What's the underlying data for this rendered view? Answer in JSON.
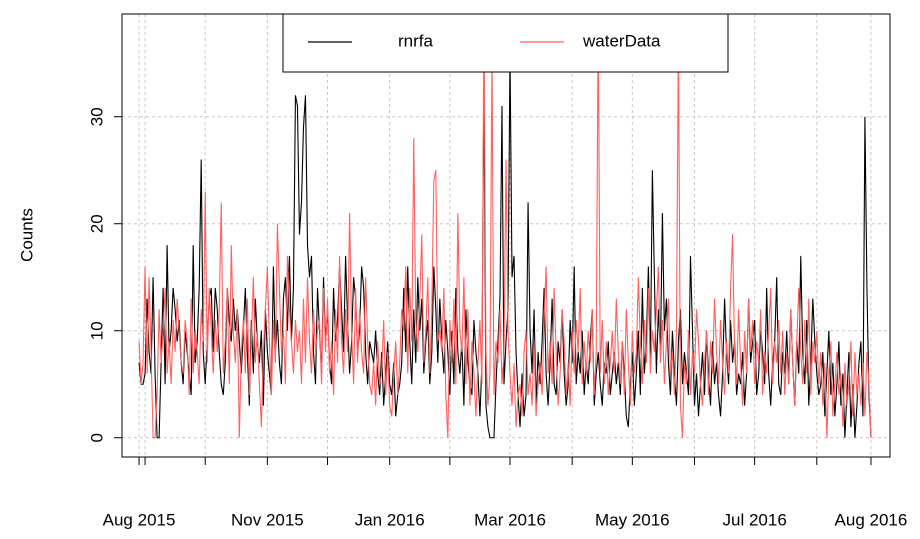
{
  "chart_data": {
    "type": "line",
    "ylabel": "Counts",
    "xlim": [
      -8.5,
      374.5
    ],
    "xticks": [
      {
        "value": 0,
        "label": "Aug 2015"
      },
      {
        "value": 64,
        "label": "Nov 2015"
      },
      {
        "value": 125,
        "label": "Jan 2016"
      },
      {
        "value": 185,
        "label": "Mar 2016"
      },
      {
        "value": 246,
        "label": "May 2016"
      },
      {
        "value": 307,
        "label": "Jul 2016"
      },
      {
        "value": 365,
        "label": "Aug 2016"
      }
    ],
    "xminorticks": [
      3,
      33,
      94,
      155,
      216,
      277,
      338
    ],
    "ylim": [
      -1.8,
      39.6
    ],
    "yticks": [
      0,
      10,
      20,
      30
    ],
    "grid": true,
    "legend": "top",
    "series": [
      {
        "name": "rnrfa",
        "color": "#000000",
        "values": [
          7,
          5,
          5,
          6,
          13,
          8,
          6,
          15,
          6,
          0,
          0,
          7,
          14,
          5,
          18,
          8,
          10,
          14,
          12,
          9,
          11,
          7,
          5,
          10,
          8,
          6,
          4,
          18,
          7,
          9,
          14,
          26,
          8,
          5,
          9,
          13,
          14,
          8,
          14,
          12,
          8,
          5,
          4,
          7,
          14,
          11,
          9,
          13,
          10,
          12,
          9,
          6,
          10,
          14,
          8,
          3,
          11,
          6,
          13,
          9,
          7,
          10,
          3,
          12,
          8,
          6,
          4,
          16,
          8,
          11,
          7,
          5,
          13,
          15,
          10,
          17,
          9,
          14,
          32,
          31,
          19,
          22,
          29,
          32,
          18,
          15,
          17,
          8,
          5,
          14,
          10,
          6,
          15,
          9,
          12,
          7,
          5,
          14,
          9,
          11,
          16,
          12,
          8,
          17,
          11,
          6,
          9,
          15,
          13,
          8,
          10,
          16,
          14,
          8,
          5,
          9,
          8,
          7,
          10,
          6,
          4,
          8,
          3,
          6,
          9,
          5,
          4,
          7,
          2,
          4,
          5,
          7,
          14,
          8,
          16,
          9,
          5,
          12,
          7,
          15,
          10,
          13,
          6,
          9,
          11,
          5,
          8,
          16,
          12,
          7,
          13,
          9,
          6,
          11,
          8,
          4,
          10,
          5,
          14,
          8,
          6,
          9,
          3,
          12,
          7,
          5,
          4,
          11,
          8,
          6,
          2,
          7,
          34,
          3,
          1,
          0,
          0,
          0,
          5,
          9,
          13,
          31,
          5,
          9,
          12,
          36,
          15,
          17,
          8,
          4,
          1,
          6,
          2,
          4,
          22,
          10,
          6,
          12,
          3,
          8,
          5,
          9,
          14,
          6,
          3,
          7,
          13,
          5,
          4,
          9,
          7,
          12,
          6,
          3,
          5,
          11,
          7,
          16,
          5,
          8,
          6,
          10,
          4,
          7,
          5,
          9,
          12,
          3,
          6,
          8,
          5,
          3,
          7,
          6,
          9,
          4,
          6,
          8,
          5,
          7,
          4,
          9,
          6,
          2,
          1,
          5,
          8,
          3,
          6,
          10,
          4,
          14,
          6,
          9,
          16,
          7,
          25,
          15,
          6,
          12,
          8,
          21,
          10,
          13,
          7,
          4,
          10,
          6,
          3,
          9,
          12,
          5,
          8,
          6,
          4,
          17,
          10,
          3,
          6,
          2,
          5,
          8,
          4,
          10,
          6,
          3,
          9,
          5,
          7,
          4,
          2,
          6,
          13,
          8,
          5,
          11,
          7,
          9,
          4,
          6,
          5,
          8,
          3,
          6,
          13,
          7,
          9,
          11,
          4,
          6,
          10,
          8,
          5,
          14,
          6,
          3,
          7,
          9,
          15,
          5,
          4,
          8,
          6,
          10,
          5,
          12,
          7,
          3,
          9,
          6,
          17,
          8,
          5,
          11,
          3,
          7,
          13,
          9,
          6,
          4,
          5,
          8,
          2,
          6,
          10,
          4,
          7,
          2,
          5,
          9,
          3,
          6,
          0,
          4,
          8,
          1,
          5,
          0,
          3,
          7,
          9,
          2,
          30,
          14,
          4,
          0
        ]
      },
      {
        "name": "waterData",
        "color": "#ff6060",
        "values": [
          9,
          5,
          7,
          16,
          6,
          15,
          8,
          0,
          0,
          4,
          12,
          7,
          10,
          14,
          6,
          9,
          5,
          11,
          8,
          13,
          10,
          7,
          6,
          11,
          9,
          4,
          13,
          6,
          10,
          8,
          5,
          12,
          9,
          23,
          7,
          14,
          10,
          6,
          11,
          8,
          12,
          22,
          6,
          9,
          14,
          5,
          18,
          10,
          7,
          12,
          0,
          8,
          11,
          6,
          13,
          4,
          9,
          15,
          7,
          10,
          5,
          1,
          8,
          12,
          16,
          9,
          4,
          11,
          7,
          20,
          14,
          8,
          10,
          5,
          17,
          12,
          9,
          6,
          11,
          8,
          10,
          5,
          13,
          7,
          15,
          9,
          6,
          12,
          8,
          10,
          11,
          5,
          14,
          8,
          13,
          6,
          9,
          4,
          12,
          7,
          17,
          9,
          6,
          12,
          8,
          21,
          10,
          5,
          14,
          7,
          12,
          8,
          6,
          15,
          9,
          5,
          4,
          7,
          3,
          9,
          5,
          6,
          11,
          4,
          8,
          3,
          2,
          6,
          9,
          4,
          7,
          12,
          10,
          16,
          6,
          14,
          9,
          28,
          11,
          8,
          13,
          19,
          7,
          10,
          15,
          6,
          12,
          24,
          25,
          9,
          10,
          8,
          14,
          4,
          0,
          11,
          7,
          13,
          5,
          21,
          10,
          8,
          15,
          5,
          12,
          3,
          9,
          6,
          2,
          7,
          11,
          5,
          40,
          8,
          3,
          6,
          36,
          4,
          9,
          7,
          12,
          5,
          8,
          26,
          10,
          6,
          3,
          7,
          1,
          4,
          5,
          2,
          8,
          10,
          4,
          6,
          3,
          9,
          2,
          5,
          7,
          4,
          11,
          16,
          6,
          9,
          5,
          14,
          8,
          3,
          6,
          12,
          9,
          4,
          7,
          3,
          10,
          6,
          11,
          8,
          14,
          5,
          9,
          6,
          10,
          7,
          12,
          4,
          8,
          40,
          6,
          11,
          5,
          9,
          4,
          7,
          10,
          6,
          13,
          8,
          5,
          9,
          4,
          12,
          7,
          3,
          10,
          6,
          8,
          15,
          9,
          5,
          11,
          7,
          14,
          6,
          10,
          8,
          12,
          16,
          7,
          11,
          5,
          9,
          13,
          6,
          8,
          4,
          10,
          38,
          3,
          0,
          7,
          5,
          10,
          4,
          8,
          6,
          12,
          9,
          5,
          3,
          7,
          10,
          4,
          9,
          6,
          13,
          8,
          5,
          11,
          7,
          4,
          9,
          6,
          14,
          19,
          8,
          5,
          12,
          7,
          3,
          10,
          6,
          13,
          8,
          11,
          5,
          9,
          7,
          12,
          4,
          8,
          6,
          10,
          14,
          5,
          9,
          7,
          11,
          6,
          10,
          4,
          8,
          5,
          12,
          7,
          3,
          9,
          14,
          8,
          5,
          11,
          6,
          13,
          4,
          9,
          7,
          10,
          5,
          8,
          3,
          7,
          0,
          6,
          9,
          2,
          5,
          8,
          4,
          6,
          1,
          7,
          3,
          5,
          9,
          2,
          8,
          4,
          6,
          3,
          7,
          2,
          8,
          5,
          0
        ]
      }
    ]
  }
}
